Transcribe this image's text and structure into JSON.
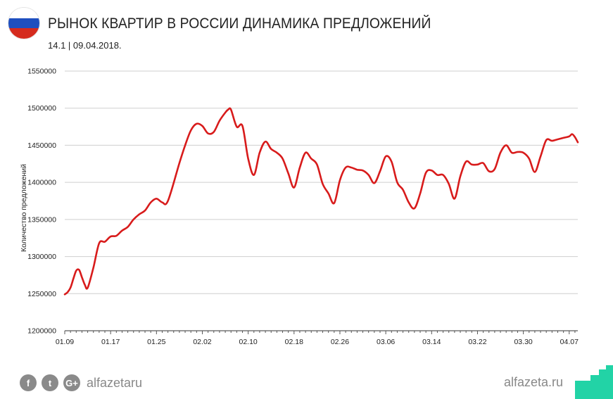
{
  "header": {
    "title": "РЫНОК КВАРТИР В РОССИИ ДИНАМИКА ПРЕДЛОЖЕНИЙ",
    "subtitle": "14.1 | 09.04.2018."
  },
  "flag": {
    "colors": [
      "#ffffff",
      "#1f4fbf",
      "#d52b1e"
    ]
  },
  "footer": {
    "social_icons": [
      "facebook-icon",
      "twitter-icon",
      "google-plus-icon"
    ],
    "social_glyphs": [
      "f",
      "t",
      "G+"
    ],
    "handle": "alfazetaru",
    "site": "alfazeta.ru"
  },
  "colors": {
    "line": "#d81b1b",
    "grid": "#cfcfcf",
    "text": "#222222",
    "muted": "#888888",
    "brand": "#22d3a6"
  },
  "chart_data": {
    "type": "line",
    "title": "РЫНОК КВАРТИР В РОССИИ ДИНАМИКА ПРЕДЛОЖЕНИЙ",
    "ylabel": "Количество предложений",
    "xlabel": "",
    "ylim": [
      1200000,
      1550000
    ],
    "yticks": [
      1200000,
      1250000,
      1300000,
      1350000,
      1400000,
      1450000,
      1500000,
      1550000
    ],
    "xticks": [
      "01.09",
      "01.17",
      "01.25",
      "02.02",
      "02.10",
      "02.18",
      "02.26",
      "03.06",
      "03.14",
      "03.22",
      "03.30",
      "04.07"
    ],
    "grid": true,
    "series": [
      {
        "values": [
          [
            0,
            1249000
          ],
          [
            0.5,
            1252000
          ],
          [
            1,
            1258000
          ],
          [
            1.5,
            1270000
          ],
          [
            2,
            1281000
          ],
          [
            2.5,
            1282000
          ],
          [
            3,
            1272000
          ],
          [
            3.5,
            1262000
          ],
          [
            4,
            1258000
          ],
          [
            5,
            1285000
          ],
          [
            6,
            1318000
          ],
          [
            7,
            1320000
          ],
          [
            8,
            1327000
          ],
          [
            9,
            1328000
          ],
          [
            10,
            1335000
          ],
          [
            11,
            1340000
          ],
          [
            12,
            1350000
          ],
          [
            13,
            1357000
          ],
          [
            14,
            1362000
          ],
          [
            15,
            1373000
          ],
          [
            16,
            1378000
          ],
          [
            17,
            1373000
          ],
          [
            18,
            1375000
          ],
          [
            20,
            1426000
          ],
          [
            21,
            1450000
          ],
          [
            22,
            1470000
          ],
          [
            23,
            1479000
          ],
          [
            24,
            1476000
          ],
          [
            25,
            1466000
          ],
          [
            26,
            1468000
          ],
          [
            27,
            1483000
          ],
          [
            28,
            1494000
          ],
          [
            28.5,
            1498000
          ],
          [
            29,
            1498000
          ],
          [
            30,
            1475000
          ],
          [
            31,
            1476000
          ],
          [
            32,
            1432000
          ],
          [
            33,
            1410000
          ],
          [
            34,
            1440000
          ],
          [
            35,
            1455000
          ],
          [
            36,
            1445000
          ],
          [
            37,
            1440000
          ],
          [
            38,
            1432000
          ],
          [
            39,
            1412000
          ],
          [
            40,
            1393000
          ],
          [
            41,
            1420000
          ],
          [
            42,
            1440000
          ],
          [
            43,
            1432000
          ],
          [
            44,
            1424000
          ],
          [
            45,
            1398000
          ],
          [
            46,
            1385000
          ],
          [
            47,
            1372000
          ],
          [
            48,
            1403000
          ],
          [
            49,
            1420000
          ],
          [
            50,
            1420000
          ],
          [
            51,
            1417000
          ],
          [
            52,
            1416000
          ],
          [
            53,
            1410000
          ],
          [
            54,
            1399000
          ],
          [
            55,
            1415000
          ],
          [
            56,
            1435000
          ],
          [
            57,
            1428000
          ],
          [
            58,
            1400000
          ],
          [
            59,
            1390000
          ],
          [
            60,
            1373000
          ],
          [
            61,
            1365000
          ],
          [
            62,
            1385000
          ],
          [
            63,
            1413000
          ],
          [
            64,
            1416000
          ],
          [
            65,
            1410000
          ],
          [
            66,
            1410000
          ],
          [
            67,
            1398000
          ],
          [
            68,
            1378000
          ],
          [
            69,
            1408000
          ],
          [
            70,
            1428000
          ],
          [
            71,
            1424000
          ],
          [
            72,
            1424000
          ],
          [
            73,
            1426000
          ],
          [
            74,
            1415000
          ],
          [
            75,
            1418000
          ],
          [
            76,
            1440000
          ],
          [
            77,
            1450000
          ],
          [
            78,
            1440000
          ],
          [
            79,
            1441000
          ],
          [
            80,
            1440000
          ],
          [
            81,
            1432000
          ],
          [
            82,
            1414000
          ],
          [
            83,
            1435000
          ],
          [
            84,
            1457000
          ],
          [
            85,
            1456000
          ],
          [
            86,
            1458000
          ],
          [
            87,
            1460000
          ],
          [
            88,
            1462000
          ],
          [
            88.5,
            1465000
          ],
          [
            89,
            1461000
          ],
          [
            89.5,
            1454000
          ]
        ]
      }
    ]
  }
}
